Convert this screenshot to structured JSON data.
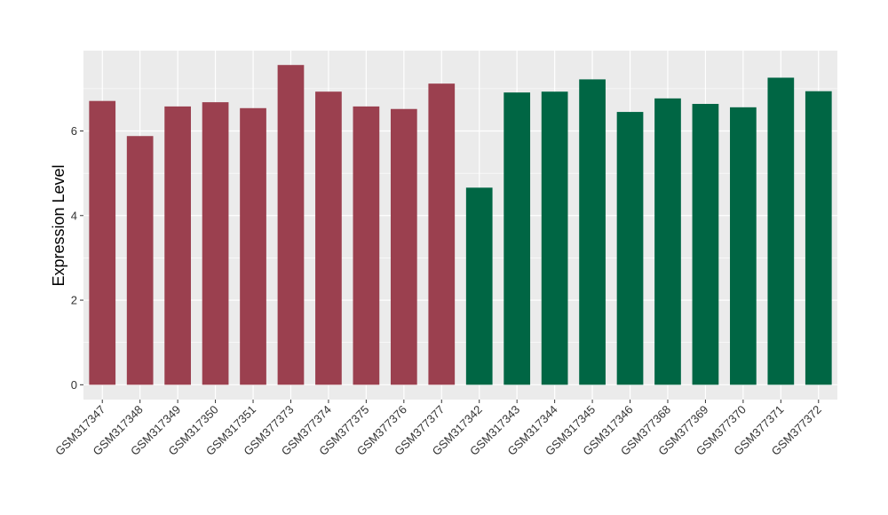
{
  "chart_data": {
    "type": "bar",
    "title": "",
    "xlabel": "",
    "ylabel": "Expression Level",
    "ylim": [
      -0.35,
      7.9
    ],
    "yticks": [
      0,
      2,
      4,
      6
    ],
    "grid": true,
    "legend": "none",
    "background_color": "#ebebeb",
    "grid_color": "#ffffff",
    "categories": [
      "GSM317347",
      "GSM317348",
      "GSM317349",
      "GSM317350",
      "GSM317351",
      "GSM377373",
      "GSM377374",
      "GSM377375",
      "GSM377376",
      "GSM377377",
      "GSM317342",
      "GSM317343",
      "GSM317344",
      "GSM317345",
      "GSM317346",
      "GSM377368",
      "GSM377369",
      "GSM377370",
      "GSM377371",
      "GSM377372"
    ],
    "values": [
      6.71,
      5.88,
      6.58,
      6.68,
      6.54,
      7.56,
      6.93,
      6.58,
      6.52,
      7.12,
      4.66,
      6.91,
      6.93,
      7.22,
      6.45,
      6.77,
      6.64,
      6.56,
      7.26,
      6.94
    ],
    "bar_colors": [
      "#9b404f",
      "#9b404f",
      "#9b404f",
      "#9b404f",
      "#9b404f",
      "#9b404f",
      "#9b404f",
      "#9b404f",
      "#9b404f",
      "#9b404f",
      "#006644",
      "#006644",
      "#006644",
      "#006644",
      "#006644",
      "#006644",
      "#006644",
      "#006644",
      "#006644",
      "#006644"
    ]
  }
}
